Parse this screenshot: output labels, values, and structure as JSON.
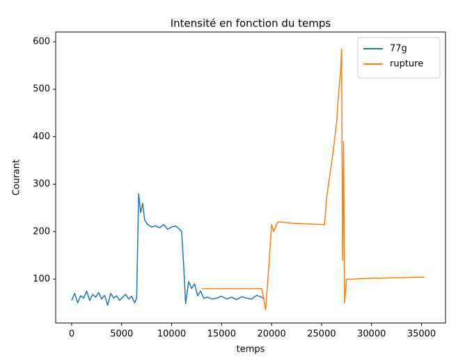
{
  "chart_data": {
    "type": "line",
    "title": "Intensité en fonction du temps",
    "xlabel": "temps",
    "ylabel": "Courant",
    "xlim": [
      -1600,
      37400
    ],
    "ylim": [
      7.6,
      620.5
    ],
    "xticks": [
      0,
      5000,
      10000,
      15000,
      20000,
      25000,
      30000,
      35000
    ],
    "yticks": [
      100,
      200,
      300,
      400,
      500,
      600
    ],
    "legend": "upper right",
    "series": [
      {
        "name": "77g",
        "color": "#1f77b4",
        "x": [
          0,
          300,
          600,
          900,
          1200,
          1500,
          1800,
          2100,
          2400,
          2700,
          3000,
          3300,
          3600,
          3900,
          4200,
          4500,
          4800,
          5100,
          5400,
          5700,
          6000,
          6300,
          6500,
          6700,
          6900,
          7100,
          7300,
          7600,
          8000,
          8400,
          8800,
          9200,
          9600,
          10000,
          10400,
          10800,
          11000,
          11200,
          11400,
          11700,
          12000,
          12300,
          12600,
          12900,
          13200,
          13600,
          14000,
          14500,
          15000,
          15500,
          16000,
          16500,
          17000,
          17500,
          18000,
          18500,
          19000,
          19300
        ],
        "values": [
          55,
          70,
          50,
          65,
          60,
          75,
          55,
          68,
          62,
          72,
          58,
          66,
          45,
          70,
          60,
          65,
          55,
          62,
          68,
          58,
          64,
          50,
          60,
          280,
          240,
          260,
          225,
          215,
          210,
          212,
          208,
          215,
          205,
          210,
          212,
          205,
          200,
          130,
          48,
          95,
          80,
          90,
          65,
          75,
          60,
          62,
          58,
          60,
          64,
          58,
          62,
          57,
          63,
          60,
          58,
          66,
          62,
          58
        ]
      },
      {
        "name": "rupture",
        "color": "#ff7f0e",
        "x": [
          13000,
          14000,
          15000,
          16000,
          17000,
          18000,
          19000,
          19200,
          19400,
          19700,
          20000,
          20200,
          20400,
          20600,
          21000,
          22000,
          23000,
          24000,
          25000,
          25300,
          25500,
          25700,
          25900,
          26100,
          26300,
          26500,
          26700,
          26900,
          27000,
          27100,
          27200,
          27300,
          27500,
          28000,
          29000,
          30000,
          31000,
          32000,
          33000,
          34000,
          35300
        ],
        "values": [
          80,
          80,
          80,
          80,
          80,
          80,
          80,
          60,
          35,
          120,
          215,
          200,
          210,
          220,
          220,
          218,
          217,
          216,
          215,
          215,
          270,
          300,
          330,
          360,
          395,
          430,
          490,
          540,
          585,
          140,
          390,
          50,
          100,
          100,
          101,
          102,
          102,
          103,
          103,
          104,
          104
        ]
      }
    ]
  }
}
